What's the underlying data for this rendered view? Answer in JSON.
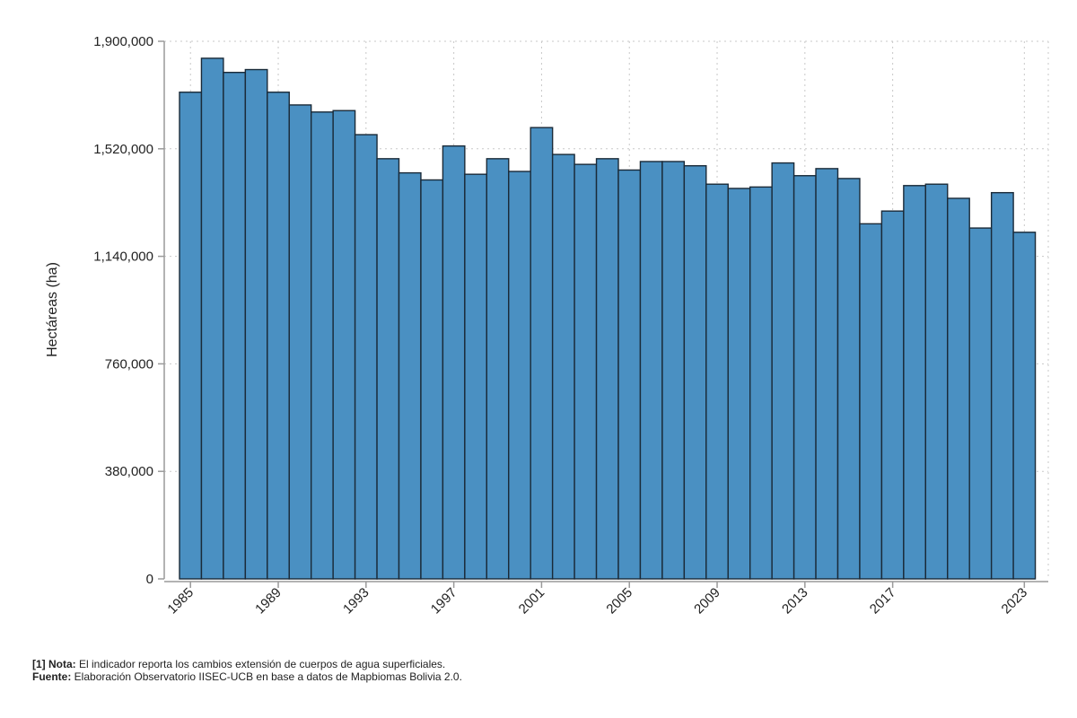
{
  "chart_data": {
    "type": "bar",
    "title": "",
    "xlabel": "",
    "ylabel": "Hectáreas (ha)",
    "ylim": [
      0,
      1900000
    ],
    "yticks": [
      0,
      380000,
      760000,
      1140000,
      1520000,
      1900000
    ],
    "ytick_labels": [
      "0",
      "380,000",
      "760,000",
      "1,140,000",
      "1,520,000",
      "1,900,000"
    ],
    "xtick_labels": [
      "1985",
      "1989",
      "1993",
      "1997",
      "2001",
      "2005",
      "2009",
      "2013",
      "2017",
      "2023"
    ],
    "grid": true,
    "bar_color": "#4a90c2",
    "bar_edge_color": "#1a2a38",
    "categories": [
      "1985",
      "1986",
      "1987",
      "1988",
      "1989",
      "1990",
      "1991",
      "1992",
      "1993",
      "1994",
      "1995",
      "1996",
      "1997",
      "1998",
      "1999",
      "2000",
      "2001",
      "2002",
      "2003",
      "2004",
      "2005",
      "2006",
      "2007",
      "2008",
      "2009",
      "2010",
      "2011",
      "2012",
      "2013",
      "2014",
      "2015",
      "2016",
      "2017",
      "2018",
      "2019",
      "2020",
      "2021",
      "2022",
      "2023"
    ],
    "values": [
      1720000,
      1840000,
      1790000,
      1800000,
      1720000,
      1675000,
      1650000,
      1655000,
      1570000,
      1485000,
      1435000,
      1410000,
      1530000,
      1430000,
      1485000,
      1440000,
      1595000,
      1500000,
      1465000,
      1485000,
      1445000,
      1475000,
      1475000,
      1460000,
      1395000,
      1380000,
      1385000,
      1470000,
      1425000,
      1450000,
      1415000,
      1255000,
      1300000,
      1390000,
      1395000,
      1345000,
      1240000,
      1365000,
      1225000
    ]
  },
  "notes": {
    "note_label": "[1] Nota:",
    "note_text": " El indicador reporta los cambios extensión de cuerpos de agua superficiales.",
    "source_label": "Fuente:",
    "source_text": " Elaboración Observatorio IISEC-UCB en base a datos de Mapbiomas Bolivia 2.0."
  }
}
